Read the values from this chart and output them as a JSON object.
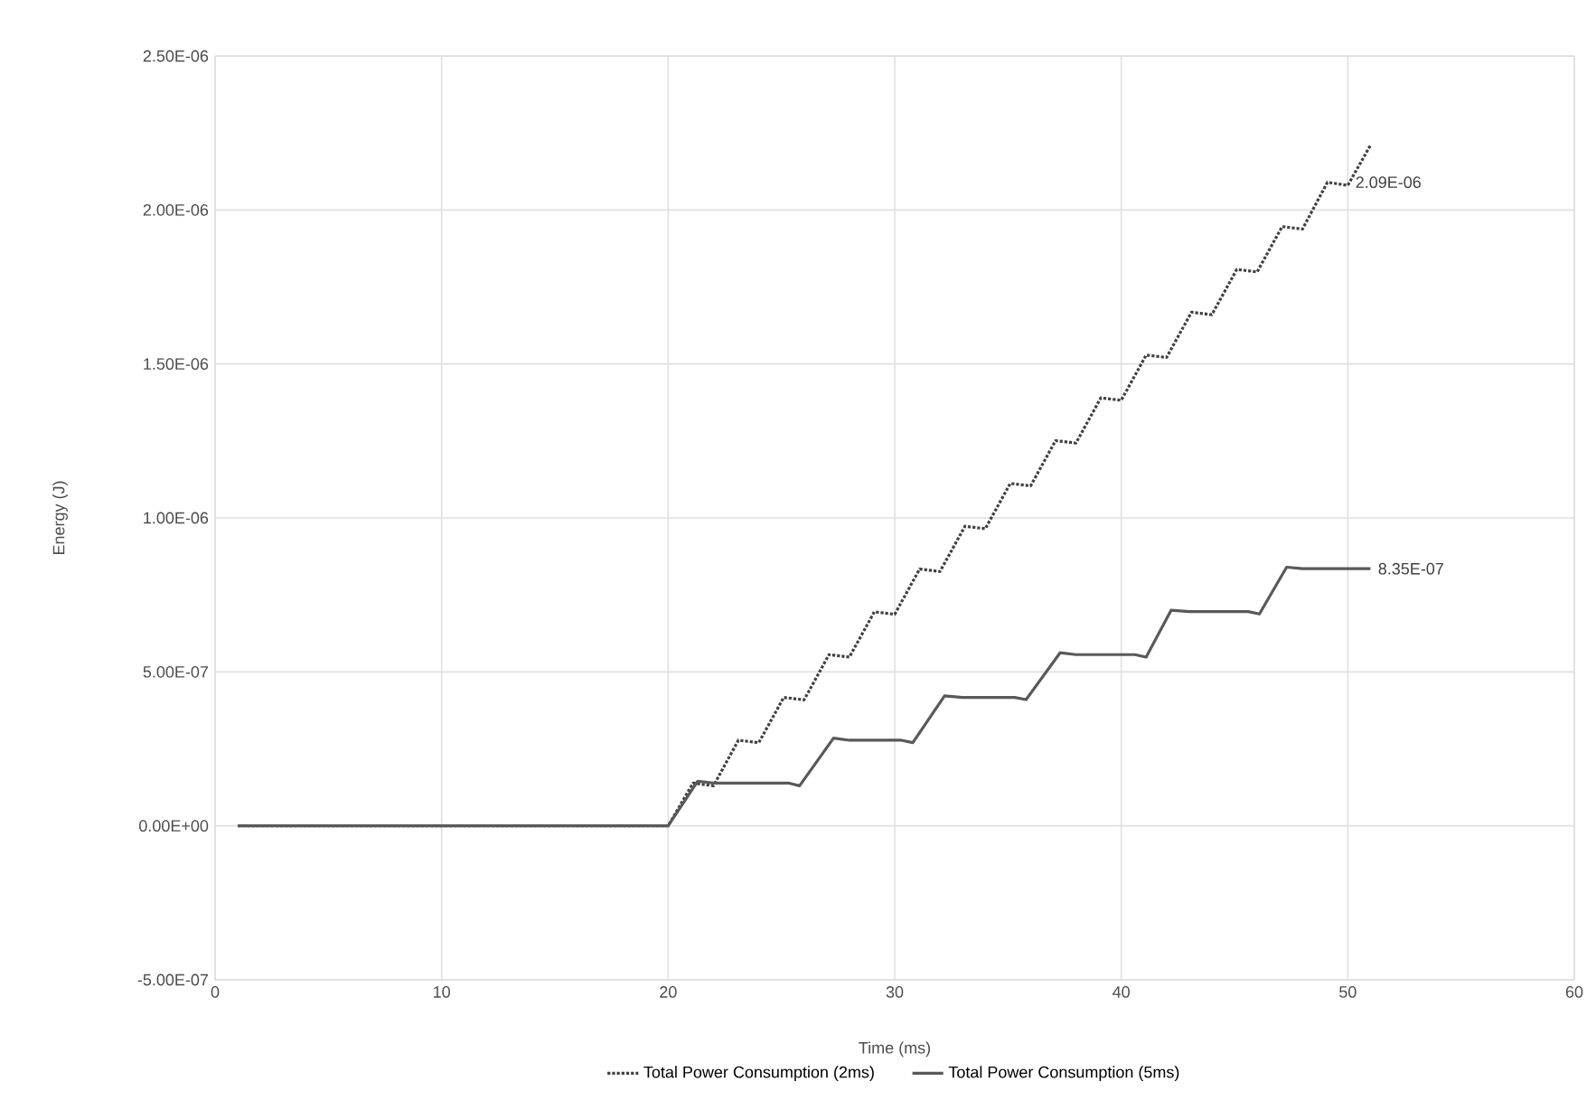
{
  "chart_data": {
    "type": "line",
    "xlabel": "Time (ms)",
    "ylabel": "Energy (J)",
    "xlim": [
      0,
      60
    ],
    "xticks": [
      0,
      10,
      20,
      30,
      40,
      50,
      60
    ],
    "ylim": [
      -5e-07,
      2.5e-06
    ],
    "yticks": [
      {
        "value": -5e-07,
        "label": "-5.00E-07"
      },
      {
        "value": 0,
        "label": "0.00E+00"
      },
      {
        "value": 5e-07,
        "label": "5.00E-07"
      },
      {
        "value": 1e-06,
        "label": "1.00E-06"
      },
      {
        "value": 1.5e-06,
        "label": "1.50E-06"
      },
      {
        "value": 2e-06,
        "label": "2.00E-06"
      },
      {
        "value": 2.5e-06,
        "label": "2.50E-06"
      }
    ],
    "grid": true,
    "legend": "bottom",
    "marker": "none",
    "series": [
      {
        "name": "Total Power Consumption (2ms)",
        "color": "#404040",
        "line_style": "dotted",
        "x": [
          1,
          19.5,
          20,
          21.1,
          22.0,
          23.1,
          24.0,
          25.1,
          26.0,
          27.1,
          28.0,
          29.1,
          30.0,
          31.1,
          32.0,
          33.1,
          34.0,
          35.1,
          36.0,
          37.1,
          38.0,
          39.1,
          40.0,
          41.1,
          42.0,
          43.1,
          44.0,
          45.1,
          46.0,
          47.1,
          48.0,
          49.1,
          50.0,
          51
        ],
        "values": [
          0,
          0,
          0,
          1.39e-07,
          1.3e-07,
          2.78e-07,
          2.7e-07,
          4.17e-07,
          4.09e-07,
          5.56e-07,
          5.48e-07,
          6.95e-07,
          6.87e-07,
          8.34e-07,
          8.26e-07,
          9.73e-07,
          9.65e-07,
          1.112e-06,
          1.104e-06,
          1.251e-06,
          1.243e-06,
          1.39e-06,
          1.382e-06,
          1.529e-06,
          1.521e-06,
          1.668e-06,
          1.66e-06,
          1.807e-06,
          1.799e-06,
          1.946e-06,
          1.938e-06,
          2.09e-06,
          2.08e-06,
          2.21e-06
        ]
      },
      {
        "name": "Total Power Consumption (5ms)",
        "color": "#595959",
        "line_style": "solid",
        "x": [
          1,
          19.5,
          20.0,
          21.3,
          22.0,
          25.3,
          25.8,
          27.3,
          28.0,
          30.3,
          30.8,
          32.2,
          33.0,
          35.3,
          35.8,
          37.3,
          38.0,
          40.6,
          41.1,
          42.2,
          43.0,
          45.6,
          46.1,
          47.3,
          48.0,
          51
        ],
        "values": [
          0,
          0,
          0,
          1.45e-07,
          1.39e-07,
          1.39e-07,
          1.3e-07,
          2.85e-07,
          2.78e-07,
          2.78e-07,
          2.7e-07,
          4.22e-07,
          4.17e-07,
          4.17e-07,
          4.1e-07,
          5.62e-07,
          5.56e-07,
          5.56e-07,
          5.48e-07,
          7e-07,
          6.96e-07,
          6.96e-07,
          6.88e-07,
          8.4e-07,
          8.35e-07,
          8.35e-07
        ]
      }
    ],
    "annotations": [
      {
        "text": "2.09E-06",
        "x": 50,
        "y": 2.09e-06
      },
      {
        "text": "8.35E-07",
        "x": 51,
        "y": 8.35e-07
      }
    ]
  }
}
